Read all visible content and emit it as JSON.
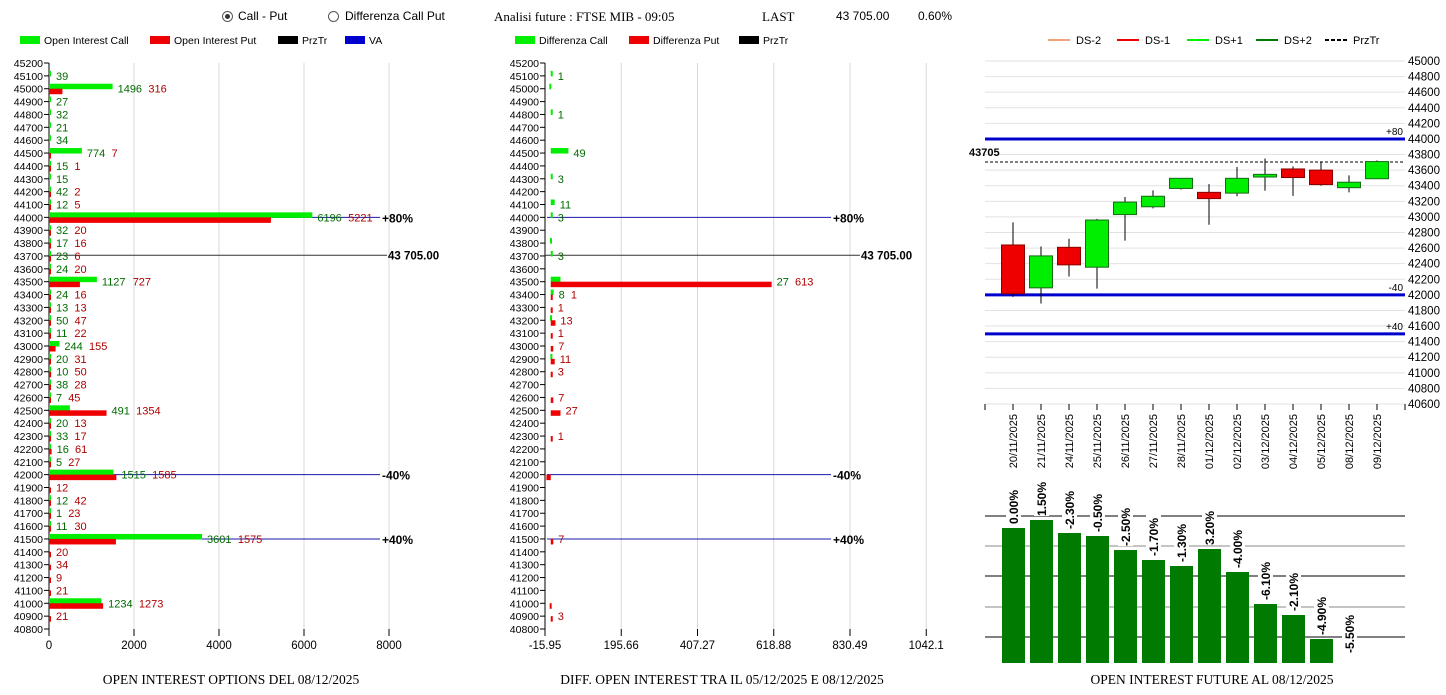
{
  "header": {
    "mode_options": [
      {
        "label": "Call - Put",
        "selected": true
      },
      {
        "label": "Differenza Call Put",
        "selected": false
      }
    ],
    "title": "Analisi future : FTSE MIB - 09:05",
    "last_label": "LAST",
    "last_value": "43 705.00",
    "change": "0.60%"
  },
  "colors": {
    "call": "#00ee00",
    "put": "#ee0000",
    "prztr": "#000000",
    "va": "#0000cc",
    "ds_minus2": "#f4a07a",
    "ds_plus2": "#007a00",
    "oi_bar": "#007a00"
  },
  "chart_data": [
    {
      "type": "bar",
      "orientation": "horizontal",
      "title": "OPEN INTEREST OPTIONS DEL 08/12/2025",
      "legend": [
        "Open Interest Call",
        "Open Interest Put",
        "PrzTr",
        "VA"
      ],
      "legend_position": "top-left",
      "xlim": [
        0,
        8000
      ],
      "xticks": [
        "0",
        "2000",
        "4000",
        "6000",
        "8000"
      ],
      "strikes": [
        45200,
        45100,
        45000,
        44900,
        44800,
        44700,
        44600,
        44500,
        44400,
        44300,
        44200,
        44100,
        44000,
        43900,
        43800,
        43700,
        43600,
        43500,
        43400,
        43300,
        43200,
        43100,
        43000,
        42900,
        42800,
        42700,
        42600,
        42500,
        42400,
        42300,
        42200,
        42100,
        42000,
        41900,
        41800,
        41700,
        41600,
        41500,
        41400,
        41300,
        41200,
        41100,
        41000,
        40900,
        40800
      ],
      "series": [
        {
          "name": "Open Interest Call",
          "values": [
            0,
            39,
            1496,
            27,
            32,
            21,
            34,
            774,
            15,
            15,
            42,
            12,
            6196,
            32,
            17,
            23,
            24,
            1127,
            24,
            13,
            50,
            11,
            244,
            20,
            10,
            38,
            7,
            491,
            20,
            33,
            16,
            5,
            1515,
            0,
            12,
            1,
            11,
            3601,
            0,
            0,
            0,
            0,
            1234,
            0,
            0
          ]
        },
        {
          "name": "Open Interest Put",
          "values": [
            0,
            0,
            316,
            0,
            0,
            0,
            0,
            7,
            1,
            0,
            2,
            5,
            5221,
            20,
            16,
            6,
            20,
            727,
            16,
            13,
            47,
            22,
            155,
            31,
            50,
            28,
            45,
            1354,
            13,
            17,
            61,
            27,
            1585,
            12,
            42,
            23,
            30,
            1575,
            20,
            34,
            9,
            21,
            1273,
            21,
            0
          ]
        }
      ],
      "reference_lines": [
        {
          "name": "PrzTr",
          "strike": 43705,
          "label": "43 705.00"
        },
        {
          "name": "VA",
          "strike": 44000,
          "label": "+80%"
        },
        {
          "name": "VA",
          "strike": 42000,
          "label": "-40%"
        },
        {
          "name": "VA",
          "strike": 41500,
          "label": "+40%"
        }
      ]
    },
    {
      "type": "bar",
      "orientation": "horizontal",
      "title": "DIFF. OPEN INTEREST TRA IL 05/12/2025 E 08/12/2025",
      "legend": [
        "Differenza Call",
        "Differenza Put",
        "PrzTr"
      ],
      "legend_position": "top-left",
      "xlim": [
        -15.95,
        1042.1
      ],
      "xticks": [
        "-15.95",
        "195.66",
        "407.27",
        "618.88",
        "830.49",
        "1042.1"
      ],
      "strikes": [
        45200,
        45100,
        45000,
        44900,
        44800,
        44700,
        44600,
        44500,
        44400,
        44300,
        44200,
        44100,
        44000,
        43900,
        43800,
        43700,
        43600,
        43500,
        43400,
        43300,
        43200,
        43100,
        43000,
        42900,
        42800,
        42700,
        42600,
        42500,
        42400,
        42300,
        42200,
        42100,
        42000,
        41900,
        41800,
        41700,
        41600,
        41500,
        41400,
        41300,
        41200,
        41100,
        41000,
        40900,
        40800
      ],
      "series": [
        {
          "name": "Differenza Call",
          "values": [
            0,
            1,
            -4,
            0,
            1,
            0,
            0,
            49,
            0,
            3,
            0,
            11,
            3,
            0,
            -2,
            3,
            0,
            27,
            8,
            0,
            -2,
            0,
            0,
            -1,
            0,
            0,
            0,
            0,
            0,
            0,
            0,
            0,
            0,
            0,
            0,
            0,
            0,
            0,
            0,
            0,
            0,
            0,
            0,
            0,
            0
          ]
        },
        {
          "name": "Differenza Put",
          "values": [
            0,
            0,
            0,
            0,
            0,
            0,
            0,
            0,
            0,
            0,
            0,
            0,
            0,
            0,
            0,
            0,
            0,
            613,
            1,
            1,
            13,
            1,
            7,
            11,
            3,
            0,
            7,
            27,
            0,
            1,
            0,
            0,
            -12,
            0,
            0,
            0,
            0,
            7,
            0,
            0,
            0,
            0,
            -3,
            3,
            0
          ]
        }
      ],
      "reference_lines": [
        {
          "name": "PrzTr",
          "strike": 43705,
          "label": "43 705.00"
        },
        {
          "name": "VA",
          "strike": 44000,
          "label": "+80%"
        },
        {
          "name": "VA",
          "strike": 42000,
          "label": "-40%"
        },
        {
          "name": "VA",
          "strike": 41500,
          "label": "+40%"
        }
      ]
    },
    {
      "type": "candlestick",
      "legend": [
        "DS-2",
        "DS-1",
        "DS+1",
        "DS+2",
        "PrzTr"
      ],
      "legend_position": "top",
      "ylim": [
        40600,
        45000
      ],
      "yticks": [
        "45000",
        "44800",
        "44600",
        "44400",
        "44200",
        "44000",
        "43800",
        "43600",
        "43400",
        "43200",
        "43000",
        "42800",
        "42600",
        "42400",
        "42200",
        "42000",
        "41800",
        "41600",
        "41400",
        "41200",
        "41000",
        "40800",
        "40600"
      ],
      "dates": [
        "20/11/2025",
        "21/11/2025",
        "24/11/2025",
        "25/11/2025",
        "26/11/2025",
        "27/11/2025",
        "28/11/2025",
        "01/12/2025",
        "02/12/2025",
        "03/12/2025",
        "04/12/2025",
        "05/12/2025",
        "08/12/2025",
        "09/12/2025"
      ],
      "candles": [
        {
          "o": 42640,
          "c": 42015,
          "h": 42930,
          "l": 41975
        },
        {
          "o": 42090,
          "c": 42500,
          "h": 42620,
          "l": 41890
        },
        {
          "o": 42610,
          "c": 42385,
          "h": 42720,
          "l": 42235
        },
        {
          "o": 42355,
          "c": 42960,
          "h": 42975,
          "l": 42080
        },
        {
          "o": 43030,
          "c": 43190,
          "h": 43255,
          "l": 42695
        },
        {
          "o": 43130,
          "c": 43265,
          "h": 43340,
          "l": 43110
        },
        {
          "o": 43365,
          "c": 43495,
          "h": 43495,
          "l": 43350
        },
        {
          "o": 43315,
          "c": 43235,
          "h": 43420,
          "l": 42900
        },
        {
          "o": 43305,
          "c": 43495,
          "h": 43640,
          "l": 43265
        },
        {
          "o": 43512,
          "c": 43546,
          "h": 43750,
          "l": 43335
        },
        {
          "o": 43615,
          "c": 43505,
          "h": 43648,
          "l": 43270
        },
        {
          "o": 43600,
          "c": 43415,
          "h": 43712,
          "l": 43400
        },
        {
          "o": 43375,
          "c": 43445,
          "h": 43533,
          "l": 43315
        },
        {
          "o": 43490,
          "c": 43710,
          "h": 43725,
          "l": 43490
        }
      ],
      "prztr": {
        "value": 43705,
        "label": "43705"
      },
      "levels": [
        {
          "value": 44000,
          "label": "+80"
        },
        {
          "value": 42000,
          "label": "-40"
        },
        {
          "value": 41500,
          "label": "+40"
        }
      ]
    },
    {
      "type": "bar",
      "title": "OPEN INTEREST FUTURE AL 08/12/2025",
      "relative_values": [
        135,
        143,
        130,
        127,
        113,
        103,
        97,
        114,
        91,
        59,
        48,
        24,
        0
      ],
      "labels": [
        "0.00%",
        "1.50%",
        "-2.30%",
        "-0.50%",
        "-2.50%",
        "-1.70%",
        "-1.30%",
        "3.20%",
        "-4.00%",
        "-6.10%",
        "-2.10%",
        "-4.90%",
        "-5.50%"
      ],
      "grid": true
    }
  ]
}
